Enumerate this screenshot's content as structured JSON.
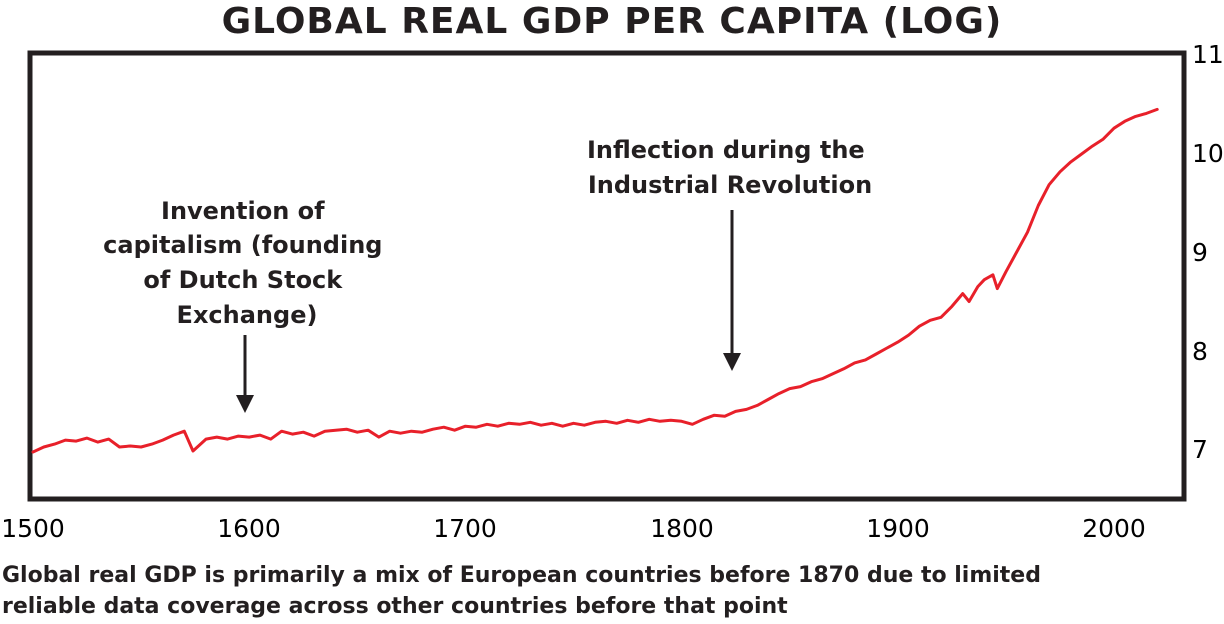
{
  "chart_data": {
    "type": "line",
    "title": "GLOBAL REAL GDP PER CAPITA (LOG)",
    "xlabel": "",
    "ylabel": "",
    "xlim": [
      1500,
      2030
    ],
    "ylim": [
      6.55,
      11.0
    ],
    "x_ticks": [
      "1500",
      "1600",
      "1700",
      "1800",
      "1900",
      "2000"
    ],
    "y_ticks": [
      "7",
      "8",
      "9",
      "10",
      "11"
    ],
    "grid": false,
    "line_color": "#e8202a",
    "series": [
      {
        "name": "Global real GDP per capita (log)",
        "points": [
          [
            1500,
            6.97
          ],
          [
            1505,
            7.02
          ],
          [
            1510,
            7.05
          ],
          [
            1515,
            7.09
          ],
          [
            1520,
            7.08
          ],
          [
            1525,
            7.11
          ],
          [
            1530,
            7.07
          ],
          [
            1535,
            7.1
          ],
          [
            1540,
            7.02
          ],
          [
            1545,
            7.03
          ],
          [
            1550,
            7.02
          ],
          [
            1555,
            7.05
          ],
          [
            1560,
            7.09
          ],
          [
            1565,
            7.14
          ],
          [
            1570,
            7.18
          ],
          [
            1574,
            6.98
          ],
          [
            1580,
            7.1
          ],
          [
            1585,
            7.12
          ],
          [
            1590,
            7.1
          ],
          [
            1595,
            7.13
          ],
          [
            1600,
            7.12
          ],
          [
            1605,
            7.14
          ],
          [
            1610,
            7.1
          ],
          [
            1615,
            7.18
          ],
          [
            1620,
            7.15
          ],
          [
            1625,
            7.17
          ],
          [
            1630,
            7.13
          ],
          [
            1635,
            7.18
          ],
          [
            1640,
            7.19
          ],
          [
            1645,
            7.2
          ],
          [
            1650,
            7.17
          ],
          [
            1655,
            7.19
          ],
          [
            1660,
            7.12
          ],
          [
            1665,
            7.18
          ],
          [
            1670,
            7.16
          ],
          [
            1675,
            7.18
          ],
          [
            1680,
            7.17
          ],
          [
            1685,
            7.2
          ],
          [
            1690,
            7.22
          ],
          [
            1695,
            7.19
          ],
          [
            1700,
            7.23
          ],
          [
            1705,
            7.22
          ],
          [
            1710,
            7.25
          ],
          [
            1715,
            7.23
          ],
          [
            1720,
            7.26
          ],
          [
            1725,
            7.25
          ],
          [
            1730,
            7.27
          ],
          [
            1735,
            7.24
          ],
          [
            1740,
            7.26
          ],
          [
            1745,
            7.23
          ],
          [
            1750,
            7.26
          ],
          [
            1755,
            7.24
          ],
          [
            1760,
            7.27
          ],
          [
            1765,
            7.28
          ],
          [
            1770,
            7.26
          ],
          [
            1775,
            7.29
          ],
          [
            1780,
            7.27
          ],
          [
            1785,
            7.3
          ],
          [
            1790,
            7.28
          ],
          [
            1795,
            7.29
          ],
          [
            1800,
            7.28
          ],
          [
            1805,
            7.25
          ],
          [
            1810,
            7.3
          ],
          [
            1815,
            7.34
          ],
          [
            1820,
            7.33
          ],
          [
            1825,
            7.38
          ],
          [
            1830,
            7.4
          ],
          [
            1835,
            7.44
          ],
          [
            1840,
            7.5
          ],
          [
            1845,
            7.56
          ],
          [
            1850,
            7.61
          ],
          [
            1855,
            7.63
          ],
          [
            1860,
            7.68
          ],
          [
            1865,
            7.71
          ],
          [
            1870,
            7.76
          ],
          [
            1875,
            7.81
          ],
          [
            1880,
            7.87
          ],
          [
            1885,
            7.9
          ],
          [
            1890,
            7.96
          ],
          [
            1895,
            8.02
          ],
          [
            1900,
            8.08
          ],
          [
            1905,
            8.15
          ],
          [
            1910,
            8.24
          ],
          [
            1915,
            8.3
          ],
          [
            1920,
            8.33
          ],
          [
            1925,
            8.44
          ],
          [
            1930,
            8.57
          ],
          [
            1933,
            8.49
          ],
          [
            1937,
            8.64
          ],
          [
            1940,
            8.71
          ],
          [
            1944,
            8.76
          ],
          [
            1946,
            8.62
          ],
          [
            1950,
            8.79
          ],
          [
            1955,
            8.99
          ],
          [
            1960,
            9.19
          ],
          [
            1965,
            9.46
          ],
          [
            1970,
            9.67
          ],
          [
            1975,
            9.8
          ],
          [
            1980,
            9.9
          ],
          [
            1985,
            9.98
          ],
          [
            1990,
            10.06
          ],
          [
            1995,
            10.13
          ],
          [
            2000,
            10.24
          ],
          [
            2005,
            10.31
          ],
          [
            2010,
            10.36
          ],
          [
            2015,
            10.39
          ],
          [
            2020,
            10.43
          ]
        ]
      }
    ],
    "annotations": [
      {
        "lines": [
          "Invention of",
          "capitalism (founding",
          "of Dutch Stock",
          "Exchange)"
        ],
        "x": 1600,
        "y": 7.35
      },
      {
        "lines": [
          "Inflection during the",
          "Industrial Revolution"
        ],
        "x": 1822,
        "y": 7.78
      }
    ]
  },
  "footnote": {
    "line1": "Global real GDP is primarily a mix of European countries before 1870 due to limited",
    "line2": "reliable data coverage across other countries before that point"
  }
}
